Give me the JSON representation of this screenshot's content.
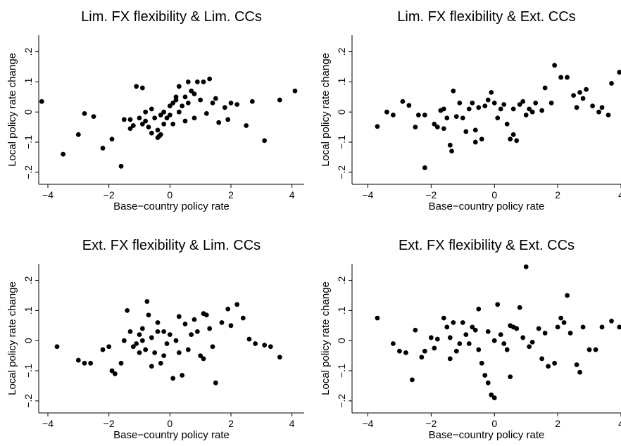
{
  "chart_data": [
    {
      "type": "scatter",
      "title": "Lim. FX flexibility & Lim. CCs",
      "xlabel": "Base−country policy rate",
      "ylabel": "Local policy rate change",
      "color": "#000000",
      "xlim": [
        -4.3,
        4.4
      ],
      "ylim": [
        -0.24,
        0.255
      ],
      "xticks": [
        {
          "value": -4,
          "label": "−4"
        },
        {
          "value": -2,
          "label": "−2"
        },
        0,
        2,
        4
      ],
      "yticks": [
        {
          "value": -0.2,
          "label": "−.2"
        },
        {
          "value": -0.1,
          "label": "−.1"
        },
        0,
        {
          "value": 0.1,
          "label": ".1"
        },
        {
          "value": 0.2,
          "label": ".2"
        }
      ],
      "x": [
        -4.2,
        -3.5,
        -3.0,
        -2.8,
        -2.5,
        -2.2,
        -1.9,
        -1.6,
        -1.3,
        -1.2,
        -1.1,
        -1.0,
        -0.9,
        -0.8,
        -0.8,
        -0.7,
        -0.6,
        -0.5,
        -0.4,
        -0.35,
        -0.3,
        -0.2,
        -0.2,
        -0.1,
        0.0,
        0.0,
        0.1,
        0.1,
        0.2,
        0.3,
        0.3,
        0.4,
        0.5,
        0.6,
        0.6,
        0.7,
        0.8,
        0.8,
        0.9,
        1.0,
        1.1,
        1.2,
        1.3,
        1.4,
        1.5,
        1.6,
        1.8,
        1.9,
        2.0,
        2.2,
        2.5,
        2.7,
        3.1,
        3.6,
        4.1,
        -0.6,
        -0.4,
        -1.3,
        -0.9,
        0.2,
        -0.3,
        0.5,
        -1.5
      ],
      "values": [
        0.035,
        -0.14,
        -0.075,
        -0.005,
        -0.015,
        -0.12,
        -0.09,
        -0.18,
        -0.025,
        -0.045,
        0.085,
        -0.02,
        0.08,
        0.0,
        -0.03,
        -0.05,
        0.01,
        -0.02,
        -0.06,
        -0.08,
        -0.01,
        -0.04,
        0.0,
        -0.02,
        0.02,
        -0.01,
        0.03,
        -0.04,
        0.04,
        0.085,
        0.0,
        0.02,
        0.05,
        0.1,
        0.03,
        0.07,
        0.06,
        -0.02,
        0.1,
        0.04,
        0.1,
        -0.005,
        0.11,
        0.03,
        0.045,
        -0.035,
        0.015,
        -0.025,
        0.03,
        0.025,
        -0.045,
        0.035,
        -0.095,
        0.04,
        0.07,
        -0.07,
        -0.085,
        -0.055,
        -0.04,
        0.05,
        -0.075,
        -0.03,
        -0.025
      ]
    },
    {
      "type": "scatter",
      "title": "Lim. FX flexibility & Ext. CCs",
      "xlabel": "Base−country policy rate",
      "ylabel": "Local policy rate change",
      "color": "#000000",
      "xlim": [
        -4.5,
        4.0
      ],
      "ylim": [
        -0.24,
        0.255
      ],
      "xticks": [
        {
          "value": -4,
          "label": "−4"
        },
        {
          "value": -2,
          "label": "−2"
        },
        0,
        2,
        4
      ],
      "yticks": [
        {
          "value": -0.2,
          "label": "−.2"
        },
        {
          "value": -0.1,
          "label": "−.1"
        },
        0,
        {
          "value": 0.1,
          "label": ".1"
        },
        {
          "value": 0.2,
          "label": ".2"
        }
      ],
      "x": [
        -3.7,
        -3.4,
        -3.2,
        -2.9,
        -2.7,
        -2.5,
        -2.4,
        -2.2,
        -2.2,
        -1.9,
        -1.8,
        -1.7,
        -1.6,
        -1.5,
        -1.4,
        -1.35,
        -1.3,
        -1.2,
        -1.1,
        -1.0,
        -0.9,
        -0.8,
        -0.7,
        -0.6,
        -0.5,
        -0.4,
        -0.3,
        -0.2,
        -0.1,
        0.0,
        0.1,
        0.2,
        0.3,
        0.4,
        0.5,
        0.6,
        0.7,
        0.8,
        0.9,
        1.0,
        1.1,
        1.2,
        1.3,
        1.5,
        1.6,
        1.8,
        1.9,
        2.1,
        2.3,
        2.5,
        2.6,
        2.7,
        2.8,
        2.9,
        3.1,
        3.3,
        3.4,
        3.6,
        3.7,
        3.95,
        -0.6,
        0.6,
        -1.6
      ],
      "values": [
        -0.048,
        0.0,
        -0.01,
        0.035,
        0.022,
        -0.05,
        -0.01,
        -0.01,
        -0.185,
        -0.04,
        -0.05,
        0.005,
        0.01,
        -0.02,
        -0.11,
        -0.13,
        0.07,
        -0.015,
        0.03,
        -0.02,
        -0.065,
        0.01,
        0.03,
        -0.1,
        0.015,
        -0.09,
        0.02,
        0.04,
        0.065,
        0.03,
        -0.02,
        0.01,
        0.025,
        -0.04,
        -0.09,
        0.01,
        -0.095,
        0.025,
        0.035,
        -0.01,
        0.01,
        0.0,
        0.03,
        0.005,
        0.08,
        0.03,
        0.155,
        0.115,
        0.115,
        0.055,
        0.015,
        0.065,
        0.045,
        0.075,
        0.02,
        0.0,
        0.015,
        -0.01,
        0.095,
        0.132,
        -0.06,
        -0.075,
        -0.055
      ]
    },
    {
      "type": "scatter",
      "title": "Ext. FX flexibility & Lim. CCs",
      "xlabel": "Base−country policy rate",
      "ylabel": "Local policy rate change",
      "color": "#000000",
      "xlim": [
        -4.3,
        4.4
      ],
      "ylim": [
        -0.24,
        0.255
      ],
      "xticks": [
        {
          "value": -4,
          "label": "−4"
        },
        {
          "value": -2,
          "label": "−2"
        },
        0,
        2,
        4
      ],
      "yticks": [
        {
          "value": -0.2,
          "label": "−.2"
        },
        {
          "value": -0.1,
          "label": "−.1"
        },
        0,
        {
          "value": 0.1,
          "label": ".1"
        },
        {
          "value": 0.2,
          "label": ".2"
        }
      ],
      "x": [
        -3.7,
        -3.0,
        -2.8,
        -2.6,
        -2.2,
        -2.0,
        -1.9,
        -1.8,
        -1.6,
        -1.5,
        -1.4,
        -1.3,
        -1.2,
        -1.1,
        -1.0,
        -0.9,
        -0.8,
        -0.75,
        -0.7,
        -0.6,
        -0.5,
        -0.4,
        -0.3,
        -0.2,
        -0.1,
        0.0,
        0.1,
        0.2,
        0.3,
        0.4,
        0.5,
        0.6,
        0.7,
        0.8,
        0.9,
        1.0,
        1.1,
        1.2,
        1.3,
        1.4,
        1.5,
        1.7,
        1.9,
        2.0,
        2.2,
        2.4,
        2.6,
        2.8,
        3.1,
        3.3,
        3.6,
        -0.9,
        -0.2,
        0.3,
        -0.6,
        1.1,
        -0.4,
        -1.0
      ],
      "values": [
        -0.02,
        -0.065,
        -0.075,
        -0.075,
        -0.03,
        -0.02,
        -0.1,
        -0.11,
        -0.075,
        0.0,
        0.1,
        0.03,
        -0.02,
        -0.01,
        0.02,
        0.0,
        -0.03,
        0.13,
        0.085,
        0.01,
        -0.04,
        0.06,
        -0.075,
        0.03,
        -0.01,
        0.02,
        -0.125,
        0.0,
        -0.04,
        -0.115,
        0.055,
        -0.03,
        0.02,
        0.07,
        0.03,
        -0.05,
        -0.06,
        0.085,
        0.04,
        -0.02,
        -0.14,
        0.06,
        0.105,
        0.05,
        0.12,
        0.075,
        0.005,
        -0.01,
        -0.015,
        -0.02,
        -0.055,
        0.04,
        -0.05,
        0.08,
        -0.085,
        0.09,
        0.03,
        -0.04
      ]
    },
    {
      "type": "scatter",
      "title": "Ext. FX flexibility & Ext. CCs",
      "xlabel": "Base−country policy rate",
      "ylabel": "Local policy rate change",
      "color": "#000000",
      "xlim": [
        -4.5,
        4.0
      ],
      "ylim": [
        -0.24,
        0.255
      ],
      "xticks": [
        {
          "value": -4,
          "label": "−4"
        },
        {
          "value": -2,
          "label": "−2"
        },
        0,
        2,
        4
      ],
      "yticks": [
        {
          "value": -0.2,
          "label": "−.2"
        },
        {
          "value": -0.1,
          "label": "−.1"
        },
        0,
        {
          "value": 0.1,
          "label": ".1"
        },
        {
          "value": 0.2,
          "label": ".2"
        }
      ],
      "x": [
        -3.7,
        -3.2,
        -3.0,
        -2.8,
        -2.6,
        -2.5,
        -2.3,
        -2.2,
        -2.0,
        -1.9,
        -1.8,
        -1.6,
        -1.5,
        -1.4,
        -1.4,
        -1.3,
        -1.2,
        -1.1,
        -1.0,
        -0.9,
        -0.8,
        -0.7,
        -0.6,
        -0.5,
        -0.4,
        -0.3,
        -0.2,
        -0.1,
        0.0,
        0.0,
        0.1,
        0.2,
        0.3,
        0.4,
        0.5,
        0.6,
        0.7,
        0.8,
        0.9,
        1.0,
        1.1,
        1.2,
        1.4,
        1.5,
        1.6,
        1.7,
        1.9,
        2.0,
        2.1,
        2.2,
        2.3,
        2.4,
        2.6,
        2.7,
        2.8,
        3.0,
        3.2,
        3.4,
        3.7,
        3.95,
        -0.5,
        0.5,
        -0.2
      ],
      "values": [
        0.075,
        -0.01,
        -0.035,
        -0.04,
        -0.13,
        0.035,
        -0.055,
        -0.035,
        0.01,
        -0.025,
        0.005,
        0.075,
        0.045,
        0.01,
        -0.06,
        0.06,
        -0.035,
        -0.01,
        0.06,
        0.02,
        -0.01,
        0.045,
        0.035,
        -0.03,
        -0.075,
        -0.115,
        -0.14,
        -0.18,
        -0.19,
        0.0,
        0.12,
        0.02,
        -0.01,
        -0.03,
        -0.12,
        0.045,
        0.04,
        0.11,
        0.01,
        0.245,
        -0.02,
        -0.005,
        0.04,
        -0.06,
        0.025,
        -0.085,
        -0.075,
        0.045,
        0.075,
        0.06,
        0.15,
        0.025,
        -0.08,
        -0.105,
        0.045,
        -0.03,
        -0.03,
        0.045,
        0.065,
        0.045,
        0.105,
        0.05,
        0.03
      ]
    }
  ]
}
